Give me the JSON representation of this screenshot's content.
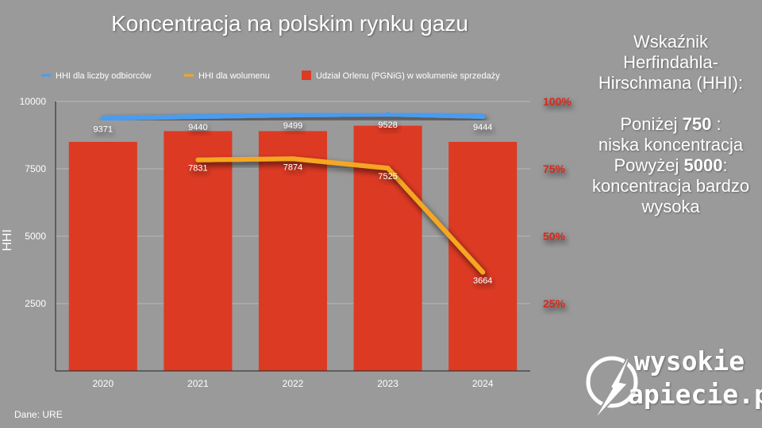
{
  "title": "Koncentracja na polskim rynku gazu",
  "chart_data": {
    "type": "bar",
    "categories": [
      "2020",
      "2021",
      "2022",
      "2023",
      "2024"
    ],
    "series": [
      {
        "name": "Udział Orlenu (PGNiG) w wolumenie sprzedaży",
        "type": "bar",
        "axis": "right",
        "values": [
          85,
          89,
          89,
          91,
          85
        ],
        "color": "#dd3a24"
      },
      {
        "name": "HHI dla liczby odbiorców",
        "type": "line",
        "axis": "left",
        "values": [
          9371,
          9440,
          9499,
          9528,
          9444
        ],
        "color": "#4a9cf0"
      },
      {
        "name": "HHI dla wolumenu",
        "type": "line",
        "axis": "left",
        "values": [
          null,
          7831,
          7874,
          7525,
          3664
        ],
        "color": "#f5a623"
      }
    ],
    "ylabel": "HHI",
    "ylim": [
      0,
      10000
    ],
    "yticks": [
      "10000",
      "7500",
      "5000",
      "2500"
    ],
    "y2lim": [
      0,
      100
    ],
    "y2ticks": [
      "100%",
      "75%",
      "50%",
      "25%"
    ],
    "legend": "top"
  },
  "side": {
    "line1": "Wskaźnik",
    "line2": "Herfindahla-",
    "line3": "Hirschmana (HHI):",
    "below_prefix": "Poniżej ",
    "below_value": "750",
    "below_suffix": " :",
    "below_desc": "niska koncentracja",
    "above_prefix": "Powyżej ",
    "above_value": "5000",
    "above_suffix": ":",
    "above_desc1": "koncentracja bardzo",
    "above_desc2": "wysoka"
  },
  "source": "Dane: URE",
  "logo": {
    "line1": "wysokie",
    "line2": "apiecie.pl"
  }
}
